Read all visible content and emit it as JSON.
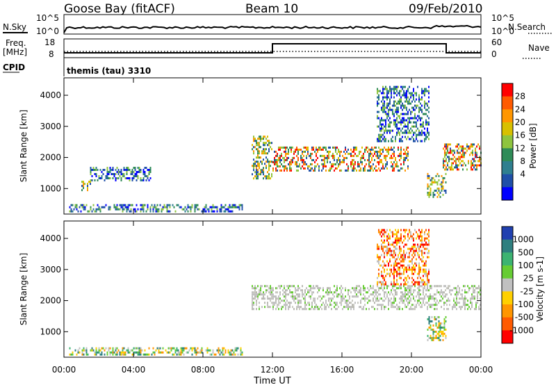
{
  "header": {
    "station": "Goose Bay (fitACF)",
    "beam": "Beam 10",
    "date": "09/Feb/2010"
  },
  "strip_panels": {
    "nsky_label": "N.Sky",
    "nsearch_label": "N.Search",
    "noise_ticks": [
      "10^5",
      "10^0"
    ],
    "freq_label_1": "Freq.",
    "freq_label_2": "[MHz]",
    "freq_ticks": [
      "18",
      "8"
    ],
    "nave_label": "Nave",
    "nave_ticks": [
      "60",
      "0"
    ],
    "cpid_label": "CPID",
    "cpid_value": "themis (tau) 3310"
  },
  "chart_data": [
    {
      "type": "heatmap",
      "name": "power",
      "ylabel": "Slant Range [km]",
      "ylim": [
        180,
        4560
      ],
      "yticks": [
        1000,
        2000,
        3000,
        4000
      ],
      "xlim": [
        0,
        24
      ],
      "colorbar_label": "Power [dB]",
      "colorbar_ticks": [
        "28",
        "24",
        "20",
        "16",
        "12",
        "8",
        "4"
      ],
      "colorbar_colors": [
        "#ff0000",
        "#ff5a00",
        "#ff9600",
        "#d8c000",
        "#8ec43e",
        "#2e8b57",
        "#2f7f8f",
        "#1f4fa8",
        "#0000ff"
      ],
      "echo_regions": [
        {
          "t": [
            0.3,
            10.3
          ],
          "r": [
            250,
            500
          ],
          "level": "low"
        },
        {
          "t": [
            1.0,
            1.5
          ],
          "r": [
            950,
            1250
          ],
          "level": "mid"
        },
        {
          "t": [
            1.5,
            5.0
          ],
          "r": [
            1250,
            1700
          ],
          "level": "low"
        },
        {
          "t": [
            10.8,
            12.0
          ],
          "r": [
            1300,
            2700
          ],
          "level": "mid"
        },
        {
          "t": [
            12.0,
            19.8
          ],
          "r": [
            1600,
            2350
          ],
          "level": "high"
        },
        {
          "t": [
            18.0,
            21.0
          ],
          "r": [
            2500,
            4300
          ],
          "level": "low"
        },
        {
          "t": [
            20.9,
            22.0
          ],
          "r": [
            700,
            1500
          ],
          "level": "mid"
        },
        {
          "t": [
            21.8,
            24.0
          ],
          "r": [
            1600,
            2450
          ],
          "level": "high"
        }
      ]
    },
    {
      "type": "heatmap",
      "name": "velocity",
      "ylabel": "Slant Range [km]",
      "ylim": [
        180,
        4560
      ],
      "yticks": [
        1000,
        2000,
        3000,
        4000
      ],
      "xlim": [
        0,
        24
      ],
      "xticks": [
        "00:00",
        "04:00",
        "08:00",
        "12:00",
        "16:00",
        "20:00",
        "00:00"
      ],
      "xlabel": "Time UT",
      "colorbar_label": "Velocity [m s-1]",
      "colorbar_ticks": [
        "1000",
        "500",
        "100",
        "25",
        "-25",
        "-100",
        "-500",
        "-1000"
      ],
      "colorbar_colors": [
        "#2040b0",
        "#2e7f7f",
        "#3cb371",
        "#66cc33",
        "#c0c0c0",
        "#ffd000",
        "#ff9600",
        "#ff5a00",
        "#ff0000"
      ],
      "echo_regions": [
        {
          "t": [
            0.3,
            10.3
          ],
          "r": [
            250,
            500
          ],
          "level": "mixed"
        },
        {
          "t": [
            10.8,
            24.0
          ],
          "r": [
            1700,
            2500
          ],
          "level": "ground"
        },
        {
          "t": [
            18.0,
            21.0
          ],
          "r": [
            2500,
            4300
          ],
          "level": "negative"
        },
        {
          "t": [
            20.9,
            22.0
          ],
          "r": [
            700,
            1500
          ],
          "level": "mixed"
        }
      ]
    }
  ]
}
